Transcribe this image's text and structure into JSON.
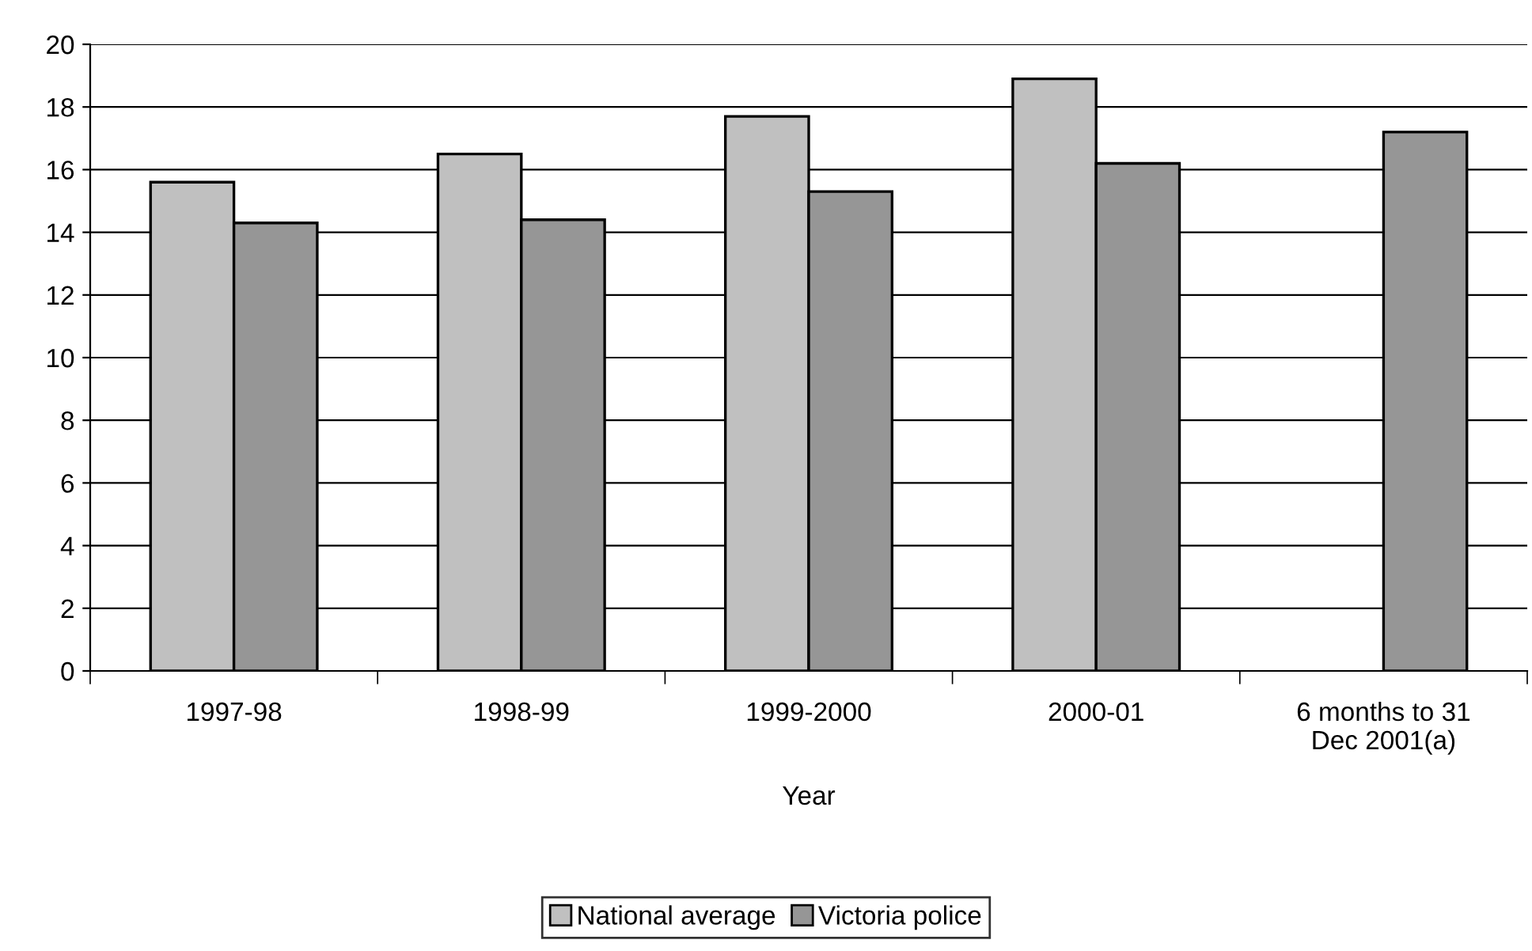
{
  "chart_data": {
    "type": "bar",
    "xlabel": "Year",
    "categories": [
      "1997-98",
      "1998-99",
      "1999-2000",
      "2000-01",
      "6 months to 31\nDec 2001(a)"
    ],
    "series": [
      {
        "name": "National average",
        "color": "#c0c0c0",
        "values": [
          15.6,
          16.5,
          17.7,
          18.9,
          null
        ]
      },
      {
        "name": "Victoria police",
        "color": "#969696",
        "values": [
          14.3,
          14.4,
          15.3,
          16.2,
          17.2
        ]
      }
    ],
    "ylim": [
      0,
      20
    ],
    "yticks": [
      0,
      2,
      4,
      6,
      8,
      10,
      12,
      14,
      16,
      18,
      20
    ],
    "grid": "y",
    "legend": "bottom"
  }
}
